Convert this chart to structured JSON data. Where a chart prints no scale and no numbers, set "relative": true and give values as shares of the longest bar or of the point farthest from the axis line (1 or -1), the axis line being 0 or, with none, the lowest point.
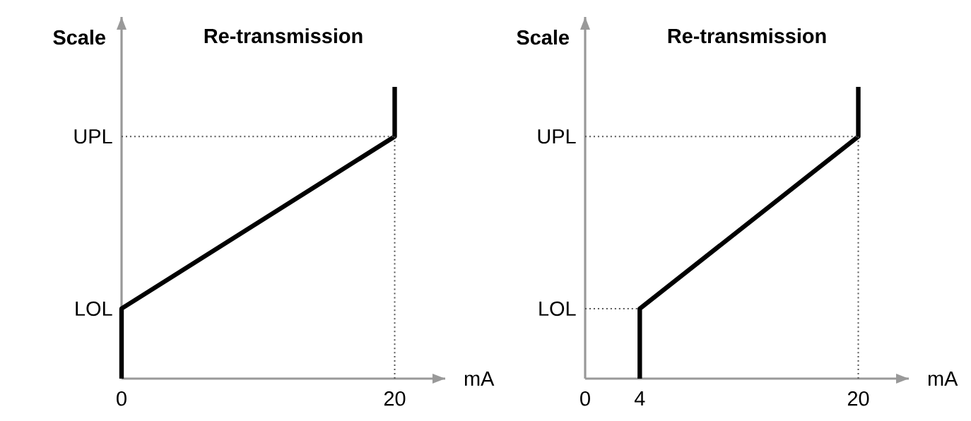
{
  "chart_data": [
    {
      "type": "line",
      "title": "Re-transmission",
      "xlabel": "mA",
      "ylabel": "Scale",
      "xlim": [
        0,
        23.7
      ],
      "xticks": [
        0,
        20
      ],
      "relative": true,
      "grid": false,
      "annotations": [
        "LOL"
      ],
      "ref_lines": [
        {
          "axis": "y",
          "value": 0.83,
          "label": "UPL",
          "color": "#555555",
          "line_style": "dotted"
        },
        {
          "axis": "x",
          "value": 20,
          "color": "#555555",
          "line_style": "dotted"
        }
      ],
      "series": [
        {
          "color": "#000000",
          "line_style": "solid",
          "x": [
            0,
            0,
            20,
            20
          ],
          "values": [
            0,
            0.24,
            0.83,
            1
          ]
        }
      ]
    },
    {
      "type": "line",
      "title": "Re-transmission",
      "xlabel": "mA",
      "ylabel": "Scale",
      "xlim": [
        0,
        23.7
      ],
      "xticks": [
        0,
        4,
        20
      ],
      "relative": true,
      "grid": false,
      "ref_lines": [
        {
          "axis": "y",
          "value": 0.24,
          "label": "LOL",
          "color": "#555555",
          "line_style": "dotted"
        },
        {
          "axis": "y",
          "value": 0.83,
          "label": "UPL",
          "color": "#555555",
          "line_style": "dotted"
        },
        {
          "axis": "x",
          "value": 20,
          "color": "#555555",
          "line_style": "dotted"
        }
      ],
      "series": [
        {
          "color": "#000000",
          "line_style": "solid",
          "x": [
            4,
            4,
            20,
            20
          ],
          "values": [
            0,
            0.24,
            0.83,
            1
          ]
        }
      ]
    }
  ]
}
